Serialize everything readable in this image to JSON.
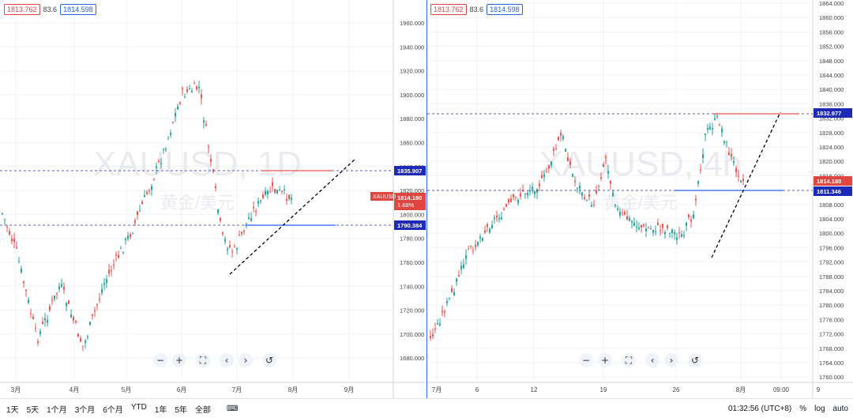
{
  "left_chart": {
    "watermark_symbol": "XAUUSD, 1D",
    "watermark_name": "黄金/美元",
    "sell_price": "1813.762",
    "spread": "83.6",
    "buy_price": "1814.598",
    "price_ticks": [
      "1960.000",
      "1940.000",
      "1920.000",
      "1900.000",
      "1880.000",
      "1860.000",
      "1840.000",
      "1820.000",
      "1800.000",
      "1780.000",
      "1760.000",
      "1740.000",
      "1720.000",
      "1700.000",
      "1680.000"
    ],
    "date_ticks": [
      "3月",
      "4月",
      "5月",
      "6月",
      "7月",
      "8月",
      "9月"
    ],
    "label_upper": "1835.907",
    "label_symbol": "XAUUSD",
    "label_current": "1814.180",
    "label_change": "1.68%",
    "label_lower": "1790.384",
    "colors": {
      "up": "#26a69a",
      "down": "#ef5350",
      "dash": "#2a2e8a"
    }
  },
  "right_chart": {
    "watermark_symbol": "XAUUSD, 4h",
    "watermark_name": "黄金/美元",
    "sell_price": "1813.762",
    "spread": "83.6",
    "buy_price": "1814.598",
    "price_ticks": [
      "1864.000",
      "1860.000",
      "1856.000",
      "1852.000",
      "1848.000",
      "1844.000",
      "1840.000",
      "1836.000",
      "1832.000",
      "1828.000",
      "1824.000",
      "1820.000",
      "1816.000",
      "1812.000",
      "1808.000",
      "1804.000",
      "1800.000",
      "1796.000",
      "1792.000",
      "1788.000",
      "1784.000",
      "1780.000",
      "1776.000",
      "1772.000",
      "1768.000",
      "1764.000",
      "1760.000"
    ],
    "date_ticks": [
      "7月",
      "6",
      "12",
      "19",
      "26",
      "8月",
      "09:00",
      "9"
    ],
    "label_upper": "1832.977",
    "label_current": "1814.180",
    "label_lower": "1811.346"
  },
  "controls": {
    "minus": "−",
    "plus": "+",
    "fit": "⛶",
    "prev": "‹",
    "next": "›",
    "reset": "↺"
  },
  "toolbar": {
    "timeframes": [
      "1天",
      "5天",
      "1个月",
      "3个月",
      "6个月",
      "YTD",
      "1年",
      "5年",
      "全部"
    ],
    "calendar_icon": "⌨",
    "time": "01:32:56 (UTC+8)",
    "percent": "%",
    "log": "log",
    "auto": "auto",
    "settings_icon": "⚙"
  }
}
